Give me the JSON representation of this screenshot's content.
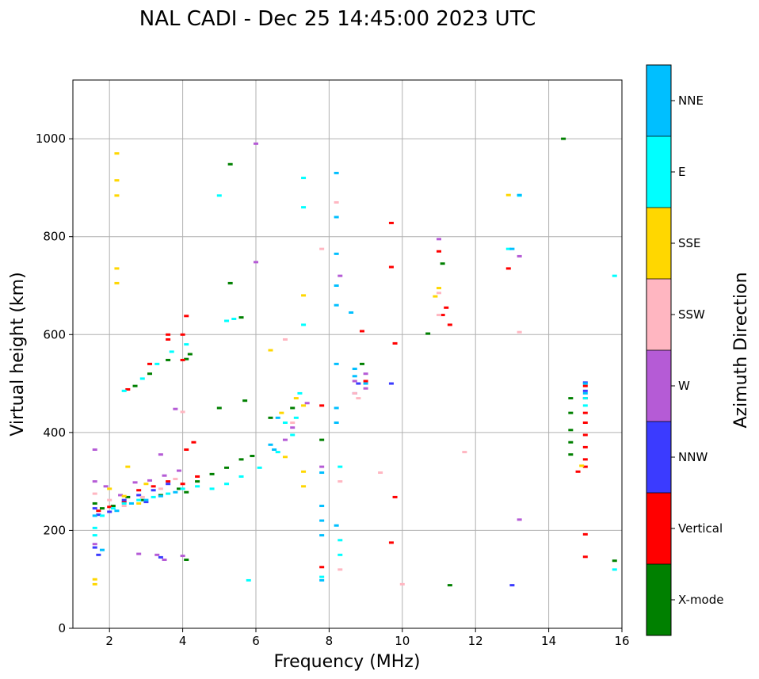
{
  "chart_data": {
    "type": "scatter",
    "title": "NAL CADI - Dec 25 14:45:00 2023 UTC",
    "xlabel": "Frequency (MHz)",
    "ylabel": "Virtual height (km)",
    "xlim": [
      1,
      16
    ],
    "ylim": [
      0,
      1120
    ],
    "xticks": [
      2,
      4,
      6,
      8,
      10,
      12,
      14,
      16
    ],
    "yticks": [
      0,
      200,
      400,
      600,
      800,
      1000
    ],
    "grid": true,
    "colorbar": {
      "label": "Azimuth Direction",
      "categories": [
        {
          "name": "X-mode",
          "color": "#008000"
        },
        {
          "name": "Vertical",
          "color": "#ff0000"
        },
        {
          "name": "NNW",
          "color": "#3b3bff"
        },
        {
          "name": "W",
          "color": "#b55bd6"
        },
        {
          "name": "SSW",
          "color": "#ffb6c1"
        },
        {
          "name": "SSE",
          "color": "#ffd700"
        },
        {
          "name": "E",
          "color": "#00ffff"
        },
        {
          "name": "NNE",
          "color": "#00bfff"
        }
      ]
    },
    "series": [
      {
        "name": "X-mode",
        "points": [
          [
            1.6,
            255
          ],
          [
            1.8,
            245
          ],
          [
            2.1,
            250
          ],
          [
            2.5,
            268
          ],
          [
            2.9,
            262
          ],
          [
            3.4,
            272
          ],
          [
            3.9,
            285
          ],
          [
            4.1,
            278
          ],
          [
            4.4,
            300
          ],
          [
            4.8,
            315
          ],
          [
            5.2,
            328
          ],
          [
            5.6,
            345
          ],
          [
            5.9,
            352
          ],
          [
            6.4,
            430
          ],
          [
            7.0,
            450
          ],
          [
            2.7,
            495
          ],
          [
            3.1,
            520
          ],
          [
            3.6,
            548
          ],
          [
            4.1,
            550
          ],
          [
            5.3,
            948
          ],
          [
            5.3,
            705
          ],
          [
            5.6,
            635
          ],
          [
            8.9,
            540
          ],
          [
            10.7,
            602
          ],
          [
            11.3,
            88
          ],
          [
            14.4,
            1000
          ],
          [
            15.8,
            138
          ],
          [
            4.1,
            140
          ],
          [
            14.6,
            470
          ],
          [
            14.6,
            440
          ],
          [
            14.6,
            405
          ],
          [
            14.6,
            380
          ],
          [
            14.6,
            355
          ],
          [
            11.1,
            745
          ],
          [
            7.8,
            385
          ],
          [
            5.7,
            465
          ],
          [
            5.0,
            450
          ],
          [
            4.2,
            560
          ]
        ]
      },
      {
        "name": "Vertical",
        "points": [
          [
            1.7,
            240
          ],
          [
            2.0,
            248
          ],
          [
            2.4,
            258
          ],
          [
            2.8,
            282
          ],
          [
            3.2,
            290
          ],
          [
            3.6,
            300
          ],
          [
            4.0,
            295
          ],
          [
            4.4,
            310
          ],
          [
            2.5,
            488
          ],
          [
            3.1,
            540
          ],
          [
            3.6,
            590
          ],
          [
            4.0,
            600
          ],
          [
            4.1,
            638
          ],
          [
            4.3,
            380
          ],
          [
            4.1,
            365
          ],
          [
            8.9,
            607
          ],
          [
            9.8,
            582
          ],
          [
            9.7,
            738
          ],
          [
            9.7,
            828
          ],
          [
            11.0,
            770
          ],
          [
            11.2,
            655
          ],
          [
            11.3,
            620
          ],
          [
            12.9,
            735
          ],
          [
            9.7,
            175
          ],
          [
            9.8,
            268
          ],
          [
            7.8,
            125
          ],
          [
            7.8,
            455
          ],
          [
            14.8,
            320
          ],
          [
            15.0,
            495
          ],
          [
            15.0,
            470
          ],
          [
            15.0,
            440
          ],
          [
            15.0,
            420
          ],
          [
            15.0,
            395
          ],
          [
            15.0,
            370
          ],
          [
            15.0,
            345
          ],
          [
            15.0,
            330
          ],
          [
            15.0,
            192
          ],
          [
            15.0,
            146
          ],
          [
            3.6,
            600
          ],
          [
            4.0,
            548
          ],
          [
            9.0,
            505
          ],
          [
            11.1,
            640
          ]
        ]
      },
      {
        "name": "NNW",
        "points": [
          [
            1.6,
            245
          ],
          [
            1.7,
            232
          ],
          [
            2.0,
            238
          ],
          [
            2.4,
            262
          ],
          [
            2.8,
            272
          ],
          [
            3.2,
            282
          ],
          [
            3.6,
            295
          ],
          [
            1.6,
            165
          ],
          [
            1.7,
            150
          ],
          [
            8.7,
            480
          ],
          [
            8.8,
            500
          ],
          [
            9.7,
            500
          ],
          [
            13.0,
            88
          ],
          [
            15.0,
            502
          ],
          [
            15.0,
            485
          ],
          [
            3.4,
            145
          ],
          [
            3.0,
            258
          ]
        ]
      },
      {
        "name": "W",
        "points": [
          [
            1.6,
            300
          ],
          [
            1.9,
            290
          ],
          [
            2.3,
            272
          ],
          [
            2.7,
            298
          ],
          [
            3.1,
            302
          ],
          [
            3.5,
            312
          ],
          [
            3.9,
            322
          ],
          [
            3.4,
            355
          ],
          [
            3.3,
            150
          ],
          [
            3.5,
            140
          ],
          [
            4.0,
            148
          ],
          [
            1.6,
            172
          ],
          [
            1.6,
            365
          ],
          [
            3.8,
            448
          ],
          [
            8.3,
            720
          ],
          [
            8.7,
            505
          ],
          [
            9.0,
            490
          ],
          [
            9.0,
            520
          ],
          [
            11.0,
            795
          ],
          [
            13.2,
            760
          ],
          [
            13.2,
            222
          ],
          [
            7.0,
            410
          ],
          [
            6.8,
            385
          ],
          [
            6.0,
            748
          ],
          [
            6.0,
            990
          ],
          [
            7.8,
            330
          ],
          [
            2.8,
            152
          ],
          [
            7.4,
            460
          ]
        ]
      },
      {
        "name": "SSW",
        "points": [
          [
            1.6,
            275
          ],
          [
            2.0,
            262
          ],
          [
            2.4,
            250
          ],
          [
            2.9,
            268
          ],
          [
            3.4,
            285
          ],
          [
            3.8,
            305
          ],
          [
            4.0,
            442
          ],
          [
            8.2,
            870
          ],
          [
            8.3,
            300
          ],
          [
            8.3,
            120
          ],
          [
            9.4,
            318
          ],
          [
            10.0,
            90
          ],
          [
            11.0,
            640
          ],
          [
            11.7,
            360
          ],
          [
            13.2,
            605
          ],
          [
            7.8,
            775
          ],
          [
            6.8,
            590
          ],
          [
            8.7,
            480
          ],
          [
            8.8,
            470
          ],
          [
            11.0,
            685
          ],
          [
            7.0,
            420
          ]
        ]
      },
      {
        "name": "SSE",
        "points": [
          [
            1.6,
            90
          ],
          [
            1.6,
            100
          ],
          [
            2.2,
            884
          ],
          [
            2.2,
            915
          ],
          [
            2.2,
            970
          ],
          [
            2.2,
            735
          ],
          [
            2.2,
            705
          ],
          [
            2.0,
            285
          ],
          [
            2.4,
            270
          ],
          [
            2.8,
            255
          ],
          [
            3.0,
            295
          ],
          [
            6.4,
            568
          ],
          [
            6.8,
            350
          ],
          [
            7.3,
            680
          ],
          [
            7.3,
            320
          ],
          [
            7.3,
            290
          ],
          [
            7.3,
            455
          ],
          [
            7.1,
            470
          ],
          [
            11.0,
            695
          ],
          [
            10.9,
            678
          ],
          [
            12.9,
            885
          ],
          [
            14.9,
            332
          ],
          [
            2.5,
            330
          ],
          [
            6.7,
            440
          ]
        ]
      },
      {
        "name": "E",
        "points": [
          [
            1.6,
            205
          ],
          [
            1.6,
            190
          ],
          [
            1.8,
            230
          ],
          [
            2.1,
            245
          ],
          [
            2.4,
            255
          ],
          [
            2.8,
            262
          ],
          [
            3.2,
            268
          ],
          [
            3.6,
            275
          ],
          [
            4.0,
            285
          ],
          [
            4.4,
            290
          ],
          [
            4.8,
            285
          ],
          [
            5.2,
            295
          ],
          [
            5.6,
            310
          ],
          [
            6.1,
            328
          ],
          [
            6.6,
            360
          ],
          [
            7.0,
            395
          ],
          [
            7.2,
            480
          ],
          [
            2.4,
            485
          ],
          [
            2.9,
            510
          ],
          [
            3.3,
            540
          ],
          [
            3.7,
            565
          ],
          [
            4.1,
            580
          ],
          [
            5.0,
            884
          ],
          [
            5.2,
            628
          ],
          [
            5.4,
            632
          ],
          [
            7.3,
            920
          ],
          [
            7.3,
            860
          ],
          [
            7.3,
            620
          ],
          [
            8.3,
            330
          ],
          [
            8.3,
            180
          ],
          [
            8.3,
            150
          ],
          [
            7.8,
            105
          ],
          [
            5.8,
            98
          ],
          [
            12.9,
            775
          ],
          [
            13.2,
            884
          ],
          [
            15.8,
            720
          ],
          [
            15.8,
            120
          ],
          [
            15.0,
            470
          ],
          [
            15.0,
            455
          ],
          [
            6.8,
            420
          ],
          [
            7.1,
            430
          ]
        ]
      },
      {
        "name": "NNE",
        "points": [
          [
            1.6,
            230
          ],
          [
            1.8,
            160
          ],
          [
            2.2,
            240
          ],
          [
            2.6,
            255
          ],
          [
            3.0,
            262
          ],
          [
            3.4,
            270
          ],
          [
            3.8,
            278
          ],
          [
            8.2,
            930
          ],
          [
            8.2,
            840
          ],
          [
            8.2,
            765
          ],
          [
            8.2,
            700
          ],
          [
            8.2,
            660
          ],
          [
            8.2,
            540
          ],
          [
            8.2,
            450
          ],
          [
            8.2,
            420
          ],
          [
            8.2,
            210
          ],
          [
            7.8,
            250
          ],
          [
            7.8,
            220
          ],
          [
            7.8,
            190
          ],
          [
            7.8,
            318
          ],
          [
            8.6,
            645
          ],
          [
            8.7,
            530
          ],
          [
            8.7,
            515
          ],
          [
            9.0,
            500
          ],
          [
            6.6,
            430
          ],
          [
            6.4,
            375
          ],
          [
            6.5,
            365
          ],
          [
            13.2,
            885
          ],
          [
            13.0,
            775
          ],
          [
            15.0,
            500
          ],
          [
            15.0,
            480
          ],
          [
            7.8,
            98
          ]
        ]
      }
    ]
  }
}
